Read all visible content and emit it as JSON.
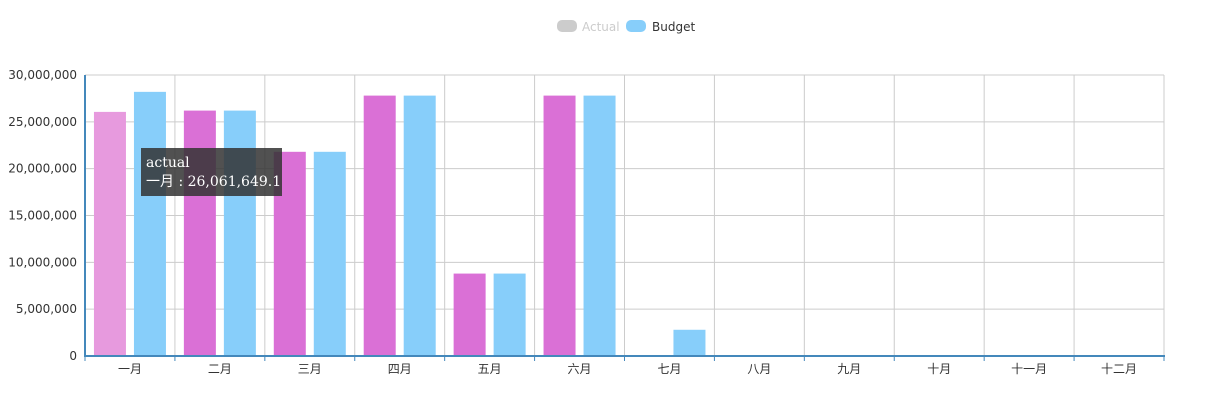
{
  "chart_data": {
    "type": "bar",
    "categories": [
      "一月",
      "二月",
      "三月",
      "四月",
      "五月",
      "六月",
      "七月",
      "八月",
      "九月",
      "十月",
      "十一月",
      "十二月"
    ],
    "series": [
      {
        "name": "Actual",
        "color": "#da70d6",
        "values": [
          26061649.1,
          26200000,
          21800000,
          27800000,
          8800000,
          27800000,
          0,
          0,
          0,
          0,
          0,
          0
        ],
        "legend_state": "inactive"
      },
      {
        "name": "Budget",
        "color": "#87cefa",
        "values": [
          28200000,
          26200000,
          21800000,
          27800000,
          8800000,
          27800000,
          2800000,
          0,
          0,
          0,
          0,
          0
        ],
        "legend_state": "active"
      }
    ],
    "ylim": [
      0,
      30000000
    ],
    "yticks": [
      0,
      5000000,
      10000000,
      15000000,
      20000000,
      25000000,
      30000000
    ],
    "ytick_labels": [
      "0",
      "5,000,000",
      "10,000,000",
      "15,000,000",
      "20,000,000",
      "25,000,000",
      "30,000,000"
    ],
    "grid": true,
    "legend_position": "top-center",
    "highlighted": {
      "series": 0,
      "index": 0,
      "color": "#e79ade"
    },
    "inactive_legend_color": "#cccccc",
    "axis_color": "#4488bb",
    "grid_color": "#cccccc"
  },
  "tooltip": {
    "title": "actual",
    "line": "一月  : 26,061,649.1"
  }
}
